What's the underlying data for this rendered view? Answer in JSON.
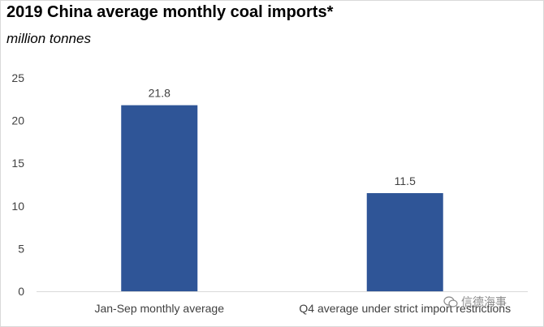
{
  "chart_data": {
    "type": "bar",
    "title": "2019 China average monthly coal imports*",
    "subtitle": "million tonnes",
    "categories": [
      "Jan-Sep monthly average",
      "Q4 average under strict import restrictions"
    ],
    "values": [
      21.8,
      11.5
    ],
    "data_labels": [
      "21.8",
      "11.5"
    ],
    "yticks": [
      "0",
      "5",
      "10",
      "15",
      "20",
      "25"
    ],
    "ytick_values": [
      0,
      5,
      10,
      15,
      20,
      25
    ],
    "ylim": [
      0,
      25
    ],
    "xlabel": "",
    "ylabel": "",
    "grid": false,
    "legend": "none",
    "bar_color": "#2f5597"
  },
  "watermark": {
    "text": "信德海事",
    "icon": "wechat-icon"
  }
}
